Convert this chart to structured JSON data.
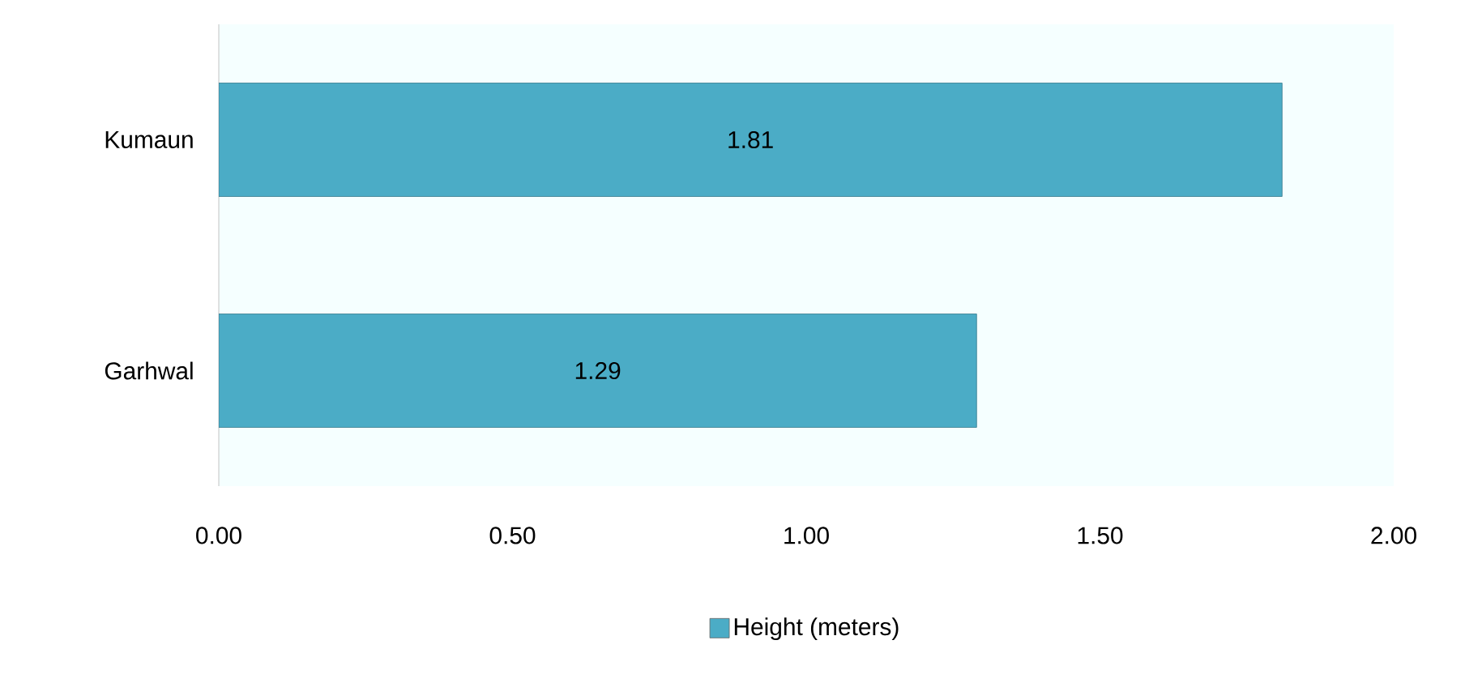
{
  "chart_data": {
    "type": "bar",
    "orientation": "horizontal",
    "categories": [
      "Kumaun",
      "Garhwal"
    ],
    "series": [
      {
        "name": "Height (meters)",
        "color": "#4bacc6",
        "values": [
          1.81,
          1.29
        ]
      }
    ],
    "value_labels": [
      "1.81",
      "1.29"
    ],
    "xlim": [
      0,
      2
    ],
    "xticks": [
      {
        "value": 0,
        "label": "0.00"
      },
      {
        "value": 0.5,
        "label": "0.50"
      },
      {
        "value": 1,
        "label": "1.00"
      },
      {
        "value": 1.5,
        "label": "1.50"
      },
      {
        "value": 2,
        "label": "2.00"
      }
    ],
    "grid": false,
    "legend": "bottom"
  }
}
